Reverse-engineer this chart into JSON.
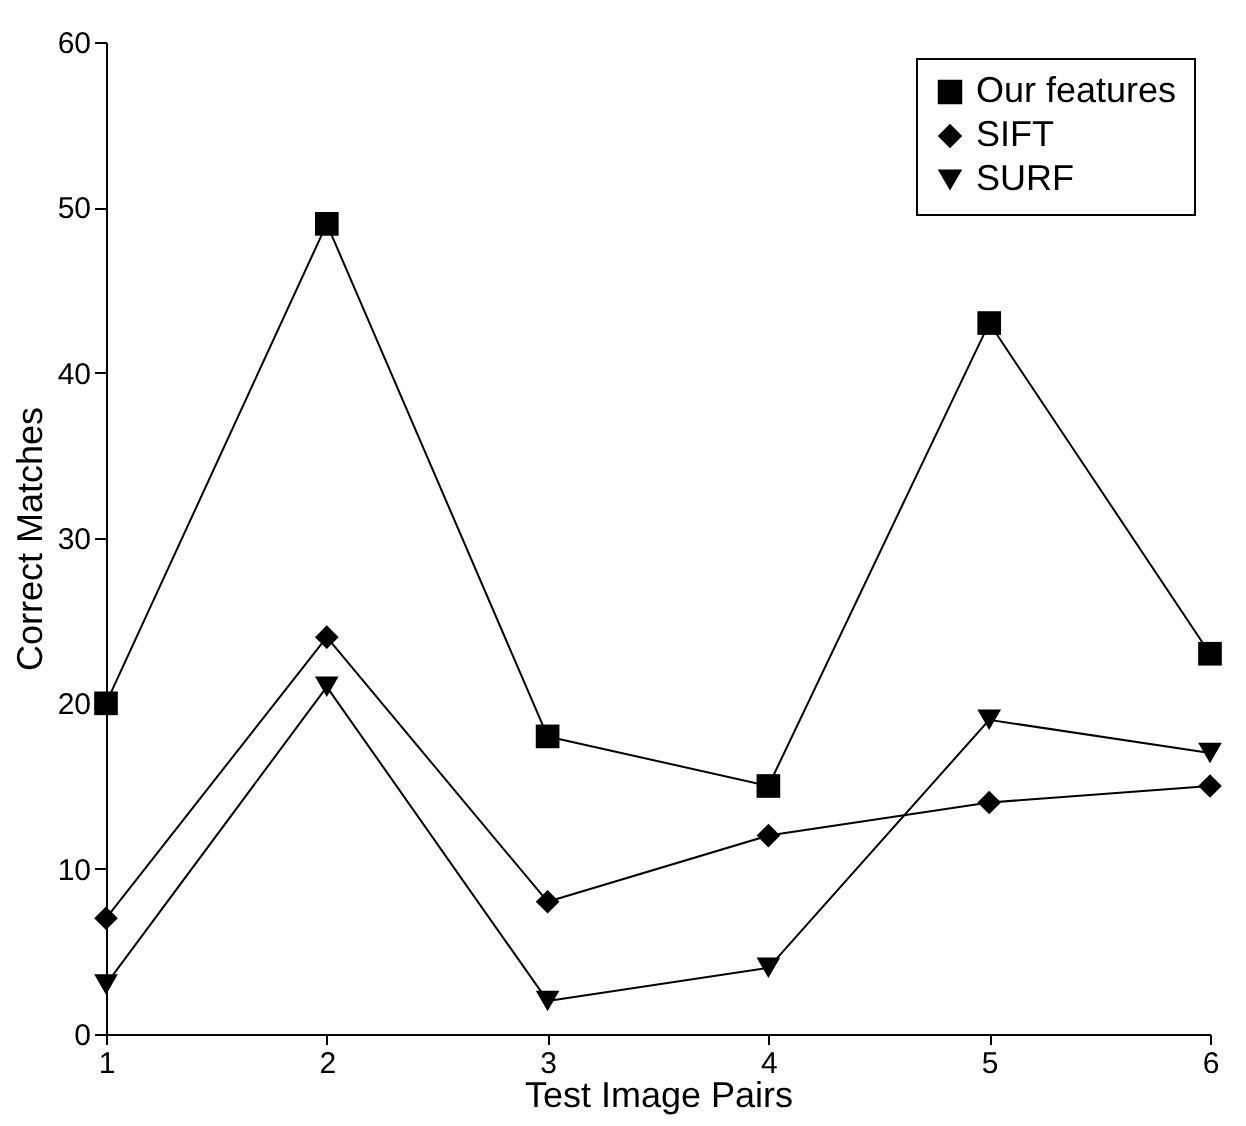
{
  "chart_data": {
    "type": "line",
    "xlabel": "Test Image Pairs",
    "ylabel": "Correct Matches",
    "x": [
      1,
      2,
      3,
      4,
      5,
      6
    ],
    "xlim": [
      1,
      6
    ],
    "xticks": [
      1,
      2,
      3,
      4,
      5,
      6
    ],
    "ylim": [
      0,
      60
    ],
    "yticks": [
      0,
      10,
      20,
      30,
      40,
      50,
      60
    ],
    "grid": false,
    "legend": "top right",
    "line_style": "solid",
    "series": [
      {
        "name": "Our features",
        "color": "#000000",
        "marker": "square",
        "values": [
          20,
          49,
          18,
          15,
          43,
          23
        ]
      },
      {
        "name": "SIFT",
        "color": "#000000",
        "marker": "diamond",
        "values": [
          7,
          24,
          8,
          12,
          14,
          15
        ]
      },
      {
        "name": "SURF",
        "color": "#000000",
        "marker": "triangle-down",
        "values": [
          3,
          21,
          2,
          4,
          19,
          17
        ]
      }
    ]
  }
}
